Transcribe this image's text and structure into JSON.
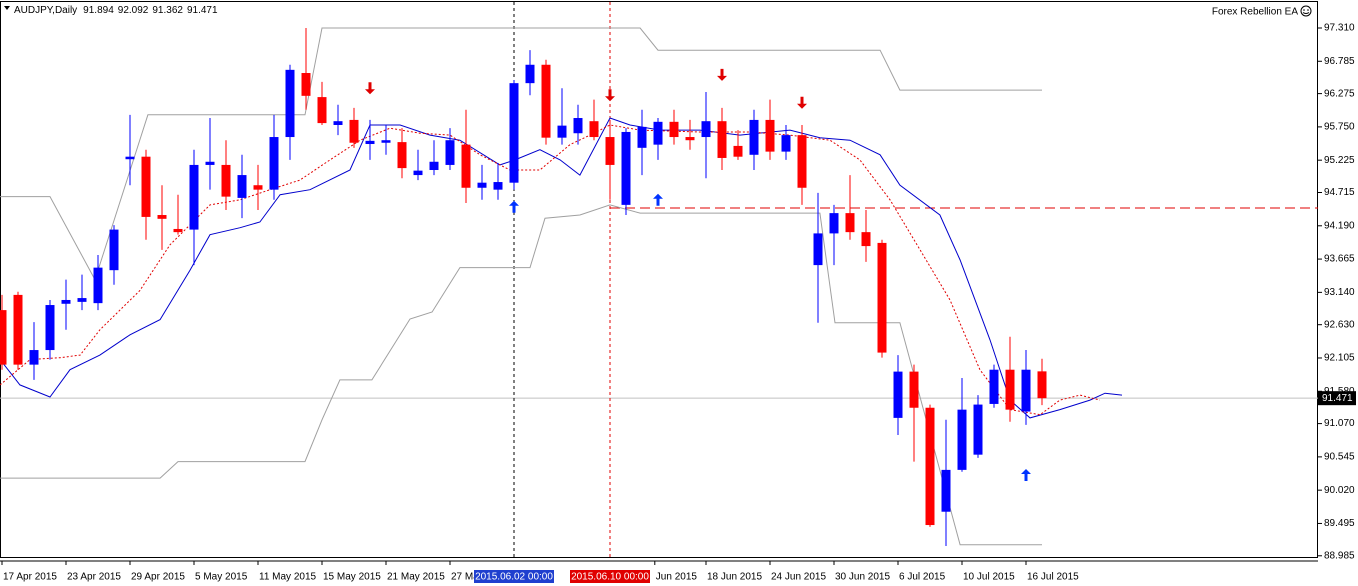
{
  "header": {
    "symbol": "AUDJPY,Daily",
    "indicator": "Forex Rebellion EA"
  },
  "chart_data": {
    "type": "candlestick",
    "bull_color": "#0000ff",
    "bear_color": "#ff0000",
    "open": [
      92.86,
      93.1,
      92.0,
      92.23,
      92.96,
      92.99,
      92.97,
      93.49,
      95.24,
      95.28,
      94.36,
      94.14,
      94.13,
      95.15,
      95.15,
      94.63,
      94.83,
      94.76,
      95.59,
      96.6,
      96.22,
      95.78,
      95.86,
      95.48,
      95.5,
      95.51,
      94.99,
      95.07,
      95.15,
      95.47,
      94.79,
      94.76,
      94.87,
      96.44,
      96.73,
      95.58,
      95.65,
      95.84,
      95.59,
      94.52,
      95.42,
      95.47,
      95.83,
      95.59,
      95.59,
      95.84,
      95.45,
      95.31,
      95.86,
      95.36,
      95.62,
      93.57,
      94.07,
      94.39,
      94.09,
      93.92,
      91.16,
      91.89,
      91.32,
      89.68,
      90.34,
      90.58,
      91.38,
      91.92,
      91.26,
      91.894
    ],
    "high": [
      93.1,
      93.15,
      92.67,
      93.02,
      93.34,
      93.42,
      93.73,
      94.2,
      95.94,
      95.39,
      94.83,
      94.68,
      95.39,
      95.89,
      95.54,
      95.31,
      95.15,
      95.94,
      96.73,
      97.31,
      96.46,
      96.1,
      96.05,
      95.86,
      95.78,
      95.73,
      95.39,
      95.54,
      95.73,
      96.02,
      95.15,
      95.18,
      96.49,
      96.96,
      96.81,
      96.36,
      96.1,
      96.18,
      95.86,
      95.73,
      96.02,
      95.89,
      96.02,
      95.86,
      96.3,
      96.05,
      95.7,
      96.02,
      96.18,
      95.78,
      95.78,
      94.71,
      94.52,
      94.99,
      94.44,
      93.97,
      92.15,
      92.0,
      91.37,
      91.13,
      91.79,
      91.52,
      92.0,
      92.44,
      92.23,
      92.092
    ],
    "low": [
      91.92,
      91.92,
      91.76,
      92.08,
      92.55,
      92.86,
      92.86,
      93.26,
      94.83,
      93.97,
      93.81,
      94.05,
      93.57,
      94.76,
      94.44,
      94.31,
      94.44,
      94.6,
      95.23,
      96.02,
      95.78,
      95.62,
      95.42,
      95.23,
      95.31,
      94.94,
      94.91,
      94.99,
      95.07,
      94.55,
      94.6,
      94.6,
      94.76,
      96.25,
      95.47,
      95.47,
      95.47,
      95.54,
      94.6,
      94.36,
      94.99,
      95.23,
      95.47,
      95.39,
      94.94,
      95.07,
      95.23,
      95.07,
      95.23,
      95.23,
      94.52,
      92.66,
      93.57,
      93.97,
      93.62,
      92.11,
      90.89,
      90.47,
      89.44,
      89.14,
      90.31,
      90.53,
      91.32,
      91.1,
      91.05,
      91.362
    ],
    "close": [
      92.0,
      92.0,
      92.23,
      92.94,
      93.02,
      93.05,
      93.53,
      94.13,
      95.28,
      94.33,
      94.3,
      94.09,
      95.15,
      95.2,
      94.65,
      94.99,
      94.76,
      95.59,
      96.65,
      96.24,
      95.81,
      95.84,
      95.5,
      95.53,
      95.54,
      95.1,
      95.06,
      95.2,
      95.54,
      94.79,
      94.87,
      94.88,
      96.44,
      96.73,
      95.58,
      95.77,
      95.89,
      95.59,
      95.15,
      95.67,
      95.75,
      95.83,
      95.59,
      95.54,
      95.84,
      95.26,
      95.28,
      95.86,
      95.36,
      95.62,
      94.79,
      94.07,
      94.39,
      94.09,
      93.87,
      92.19,
      91.89,
      91.32,
      89.47,
      90.34,
      91.29,
      91.37,
      91.92,
      91.29,
      91.92,
      91.471
    ],
    "xlim": [
      -0.125,
      82.25
    ],
    "ylim": [
      88.95,
      97.72
    ],
    "yticks": [
      {
        "value": 97.31,
        "label": "97.310"
      },
      96.785,
      96.275,
      {
        "value": 95.75,
        "label": "95.750"
      },
      95.225,
      94.715,
      {
        "value": 94.19,
        "label": "94.190"
      },
      93.665,
      {
        "value": 93.14,
        "label": "93.140"
      },
      {
        "value": 92.63,
        "label": "92.630"
      },
      92.105,
      {
        "value": 91.58,
        "label": "91.580"
      },
      {
        "value": 91.07,
        "label": "91.070"
      },
      90.545,
      {
        "value": 90.02,
        "label": "90.020"
      },
      89.495,
      88.985
    ],
    "xticks": [
      {
        "value": 0,
        "label": "17 Apr 2015"
      },
      {
        "value": 4,
        "label": "23 Apr 2015"
      },
      {
        "value": 8,
        "label": "29 Apr 2015"
      },
      {
        "value": 12,
        "label": "5 May 2015"
      },
      {
        "value": 16,
        "label": "11 May 2015"
      },
      {
        "value": 20,
        "label": "15 May 2015"
      },
      {
        "value": 24,
        "label": "21 May 2015"
      },
      {
        "value": 28,
        "label": "27 Ma"
      },
      {
        "value": 40.8,
        "label": "Jun 2015"
      },
      {
        "value": 44,
        "label": "18 Jun 2015"
      },
      {
        "value": 48,
        "label": "24 Jun 2015"
      },
      {
        "value": 52,
        "label": "30 Jun 2015"
      },
      {
        "value": 56,
        "label": "6 Jul 2015"
      },
      {
        "value": 60,
        "label": "10 Jul 2015"
      },
      {
        "value": 64,
        "label": "16 Jul 2015"
      }
    ],
    "vlines": [
      {
        "x": 32,
        "label": "2015.06.02 00:00",
        "color": "#000000",
        "label_color": "#1f3fcf"
      },
      {
        "x": 38,
        "label": "2015.06.10 00:00",
        "color": "#e00000",
        "label_color": "#e00000"
      }
    ],
    "hline": {
      "value": 94.47,
      "from": 38,
      "color": "#e00000"
    },
    "price_line_color": "#c0c0c0",
    "lines": [
      {
        "color": "#a0a0a0",
        "style": "solid",
        "x": [
          -0.12,
          3,
          5.81,
          9.12,
          18.94,
          20,
          39.88,
          41,
          54.88,
          56.12,
          65
        ],
        "values": [
          94.65,
          94.65,
          93.34,
          95.94,
          95.94,
          97.31,
          97.31,
          96.96,
          96.96,
          96.33,
          96.33
        ]
      },
      {
        "color": "#a0a0a0",
        "style": "solid",
        "x": [
          -0.12,
          9.88,
          11,
          18.94,
          20,
          21.12,
          23.12,
          25.5,
          26.88,
          28.62,
          33,
          33.94,
          36.12,
          38,
          39.88,
          51.12,
          52.06,
          56.12,
          59.88,
          65
        ],
        "values": [
          90.21,
          90.21,
          90.47,
          90.47,
          91.13,
          91.76,
          91.76,
          92.72,
          92.83,
          93.53,
          93.53,
          94.31,
          94.36,
          94.52,
          94.39,
          94.39,
          92.66,
          92.66,
          89.16,
          89.16
        ]
      },
      {
        "color": "#0000cc",
        "style": "solid",
        "x": [
          -0.12,
          1.12,
          3,
          4.25,
          6.12,
          8,
          9.88,
          11.75,
          13,
          14.88,
          16.12,
          17.38,
          19.25,
          21.75,
          23,
          24.88,
          26.75,
          28.62,
          31.12,
          32.06,
          33.62,
          34.88,
          36.12,
          38,
          39.25,
          41.12,
          43.62,
          46.12,
          49.25,
          51.12,
          53,
          54.88,
          56.12,
          58.62,
          59.88,
          61.75,
          63,
          64.25,
          66.12,
          68,
          68.94,
          70
        ],
        "values": [
          92.08,
          91.68,
          91.49,
          91.92,
          92.15,
          92.47,
          92.71,
          93.49,
          94.05,
          94.16,
          94.25,
          94.68,
          94.76,
          95.07,
          95.78,
          95.78,
          95.62,
          95.54,
          95.15,
          95.23,
          95.39,
          95.23,
          94.99,
          95.89,
          95.78,
          95.7,
          95.7,
          95.62,
          95.7,
          95.58,
          95.54,
          95.31,
          94.83,
          94.36,
          93.65,
          92.39,
          91.44,
          91.16,
          91.29,
          91.44,
          91.55,
          91.52
        ]
      },
      {
        "color": "#e00000",
        "style": "dotted",
        "x": [
          -0.12,
          1.75,
          3.62,
          4.88,
          6.12,
          8.62,
          10.5,
          13,
          14.88,
          16.75,
          18.62,
          20.5,
          22.38,
          24.25,
          26.12,
          28,
          29.88,
          31.75,
          33.62,
          35.5,
          36.75,
          38,
          39.88,
          43.62,
          46.75,
          49.25,
          51.75,
          53.62,
          55.5,
          57.38,
          59.25,
          61.12,
          63,
          64.88,
          66.12,
          67.38,
          68.62
        ],
        "values": [
          91.68,
          92.08,
          92.11,
          92.15,
          92.55,
          93.17,
          93.89,
          94.52,
          94.6,
          94.76,
          94.91,
          95.23,
          95.54,
          95.73,
          95.65,
          95.62,
          95.31,
          95.07,
          95.07,
          95.47,
          95.62,
          95.78,
          95.7,
          95.67,
          95.67,
          95.62,
          95.54,
          95.23,
          94.6,
          93.81,
          93.02,
          91.92,
          91.29,
          91.21,
          91.44,
          91.52,
          91.44
        ]
      }
    ],
    "arrows": [
      {
        "x": 23,
        "y": 96.36,
        "dir": "down",
        "color": "#e00000"
      },
      {
        "x": 38,
        "y": 96.25,
        "dir": "down",
        "color": "#e00000"
      },
      {
        "x": 45,
        "y": 96.57,
        "dir": "down",
        "color": "#e00000"
      },
      {
        "x": 50,
        "y": 96.13,
        "dir": "down",
        "color": "#e00000"
      },
      {
        "x": 32,
        "y": 94.49,
        "dir": "up",
        "color": "#0033ff"
      },
      {
        "x": 41,
        "y": 94.6,
        "dir": "up",
        "color": "#0033ff"
      },
      {
        "x": 64,
        "y": 90.26,
        "dir": "up",
        "color": "#0033ff"
      }
    ]
  }
}
